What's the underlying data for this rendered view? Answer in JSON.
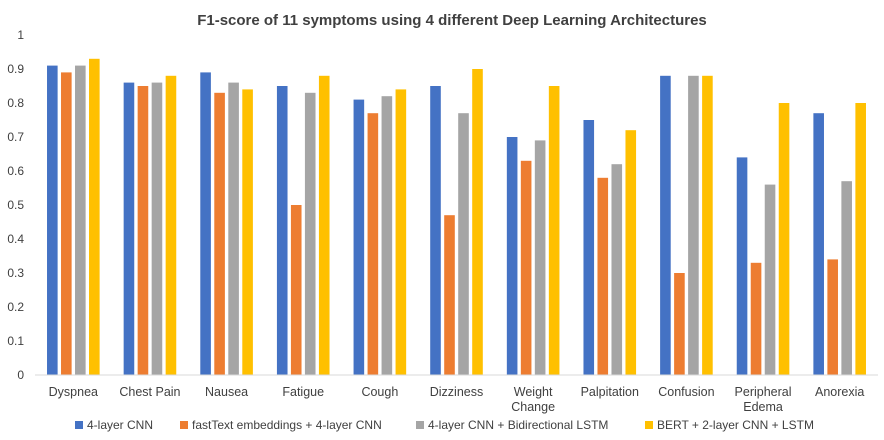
{
  "chart_data": {
    "type": "bar",
    "title": "F1-score of 11 symptoms using 4 different Deep Learning Architectures",
    "xlabel": "",
    "ylabel": "",
    "ylim": [
      0,
      1
    ],
    "yticks": [
      "0",
      "0.1",
      "0.2",
      "0.3",
      "0.4",
      "0.5",
      "0.6",
      "0.7",
      "0.8",
      "0.9",
      "1"
    ],
    "grid": false,
    "legend_position": "bottom",
    "categories": [
      [
        "Dyspnea"
      ],
      [
        "Chest Pain"
      ],
      [
        "Nausea"
      ],
      [
        "Fatigue"
      ],
      [
        "Cough"
      ],
      [
        "Dizziness"
      ],
      [
        "Weight",
        "Change"
      ],
      [
        "Palpitation"
      ],
      [
        "Confusion"
      ],
      [
        "Peripheral",
        "Edema"
      ],
      [
        "Anorexia"
      ]
    ],
    "series": [
      {
        "name": "4-layer CNN",
        "color": "#4472C4",
        "values": [
          0.91,
          0.86,
          0.89,
          0.85,
          0.81,
          0.85,
          0.7,
          0.75,
          0.88,
          0.64,
          0.77
        ]
      },
      {
        "name": "fastText embeddings + 4-layer CNN",
        "color": "#ED7D31",
        "values": [
          0.89,
          0.85,
          0.83,
          0.5,
          0.77,
          0.47,
          0.63,
          0.58,
          0.3,
          0.33,
          0.34
        ]
      },
      {
        "name": "4-layer CNN + Bidirectional LSTM",
        "color": "#A5A5A5",
        "values": [
          0.91,
          0.86,
          0.86,
          0.83,
          0.82,
          0.77,
          0.69,
          0.62,
          0.88,
          0.56,
          0.57
        ]
      },
      {
        "name": "BERT + 2-layer CNN + LSTM",
        "color": "#FFC000",
        "values": [
          0.93,
          0.88,
          0.84,
          0.88,
          0.84,
          0.9,
          0.85,
          0.72,
          0.88,
          0.8,
          0.8
        ]
      }
    ]
  }
}
